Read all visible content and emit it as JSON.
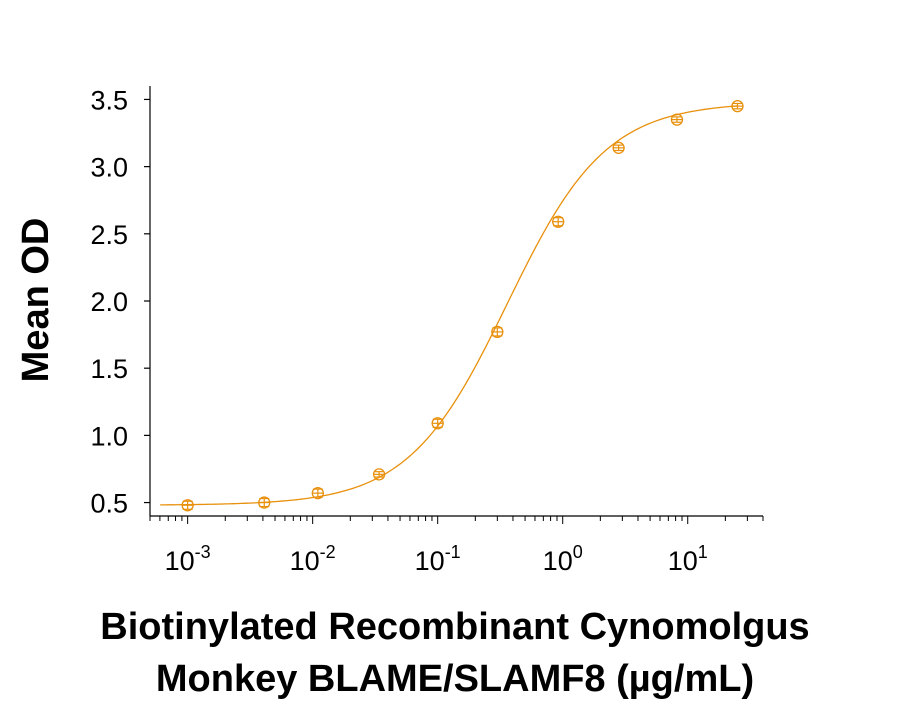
{
  "chart_data": {
    "type": "scatter",
    "title": "",
    "xlabel_lines": [
      "Biotinylated Recombinant Cynomolgus",
      "Monkey BLAME/SLAMF8 (µg/mL)"
    ],
    "ylabel": "Mean OD",
    "xscale": "log",
    "xlim": [
      0.0005,
      40
    ],
    "ylim": [
      0.4,
      3.6
    ],
    "x_ticks": [
      {
        "base": "10",
        "exp": "-3",
        "value": 0.001
      },
      {
        "base": "10",
        "exp": "-2",
        "value": 0.01
      },
      {
        "base": "10",
        "exp": "-1",
        "value": 0.1
      },
      {
        "base": "10",
        "exp": "0",
        "value": 1
      },
      {
        "base": "10",
        "exp": "1",
        "value": 10
      }
    ],
    "y_ticks": [
      "0.5",
      "1.0",
      "1.5",
      "2.0",
      "2.5",
      "3.0",
      "3.5"
    ],
    "color": "#E8900C",
    "series": [
      {
        "x": [
          0.001,
          0.0041,
          0.011,
          0.034,
          0.1,
          0.3,
          0.92,
          2.8,
          8.2,
          25
        ],
        "y": [
          0.48,
          0.5,
          0.57,
          0.71,
          1.09,
          1.77,
          2.59,
          3.14,
          3.35,
          3.45
        ],
        "err": [
          0.03,
          0.03,
          0.03,
          0.02,
          0.03,
          0.03,
          0.03,
          0.02,
          0.02,
          0.02
        ],
        "marker": "open-circle",
        "fit": {
          "model": "4PL",
          "bottom": 0.48,
          "top": 3.48,
          "ec50": 0.36,
          "hill": 1.1
        }
      }
    ]
  }
}
